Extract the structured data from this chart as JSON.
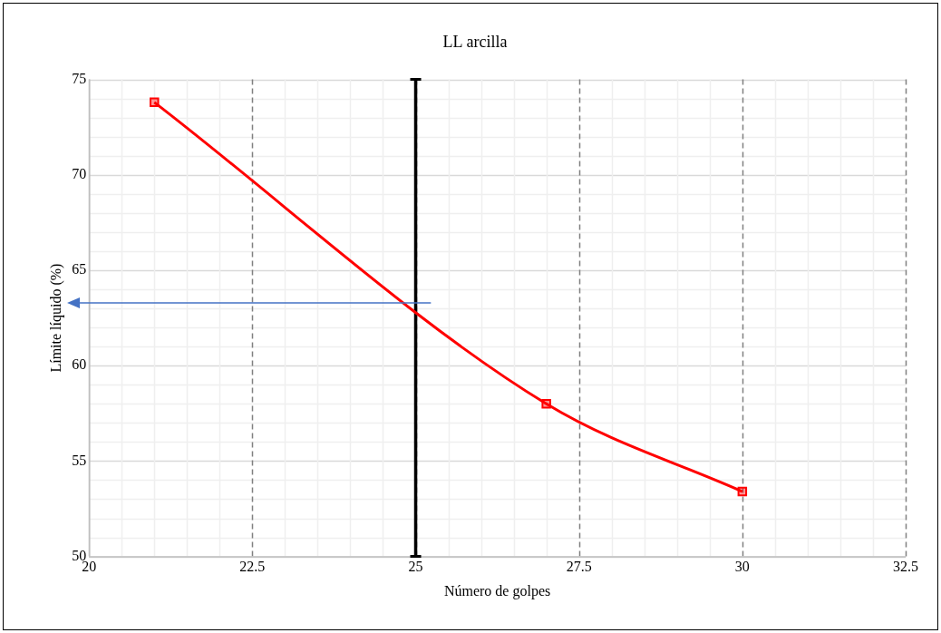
{
  "chart_data": {
    "type": "line",
    "title": "LL arcilla",
    "xlabel": "Número de golpes",
    "ylabel": "Límite líquido (%)",
    "x": [
      21,
      27,
      30
    ],
    "series": [
      {
        "color": "#ff0000",
        "values": [
          73.8,
          58,
          53.4
        ]
      }
    ],
    "xlim": [
      20,
      32.5
    ],
    "xticks": [
      20,
      {
        "value": 20.5,
        "label": null
      },
      {
        "value": 21,
        "label": null
      },
      {
        "value": 21.5,
        "label": null
      },
      {
        "value": 22,
        "label": null
      },
      22.5,
      {
        "value": 23,
        "label": null
      },
      {
        "value": 23.5,
        "label": null
      },
      {
        "value": 24,
        "label": null
      },
      {
        "value": 24.5,
        "label": null
      },
      25,
      {
        "value": 25.5,
        "label": null
      },
      {
        "value": 26,
        "label": null
      },
      {
        "value": 26.5,
        "label": null
      },
      {
        "value": 27,
        "label": null
      },
      27.5,
      {
        "value": 28,
        "label": null
      },
      {
        "value": 28.5,
        "label": null
      },
      {
        "value": 29,
        "label": null
      },
      {
        "value": 29.5,
        "label": null
      },
      30,
      {
        "value": 30.5,
        "label": null
      },
      {
        "value": 31,
        "label": null
      },
      {
        "value": 31.5,
        "label": null
      },
      {
        "value": 32,
        "label": null
      },
      32.5
    ],
    "ylim": [
      50,
      75
    ],
    "yticks": [
      50,
      {
        "value": 51,
        "label": null
      },
      {
        "value": 52,
        "label": null
      },
      {
        "value": 53,
        "label": null
      },
      {
        "value": 54,
        "label": null
      },
      55,
      {
        "value": 56,
        "label": null
      },
      {
        "value": 57,
        "label": null
      },
      {
        "value": 58,
        "label": null
      },
      {
        "value": 59,
        "label": null
      },
      60,
      {
        "value": 61,
        "label": null
      },
      {
        "value": 62,
        "label": null
      },
      {
        "value": 63,
        "label": null
      },
      {
        "value": 64,
        "label": null
      },
      65,
      {
        "value": 66,
        "label": null
      },
      {
        "value": 67,
        "label": null
      },
      {
        "value": 68,
        "label": null
      },
      {
        "value": 69,
        "label": null
      },
      70,
      {
        "value": 71,
        "label": null
      },
      {
        "value": 72,
        "label": null
      },
      {
        "value": 73,
        "label": null
      },
      {
        "value": 74,
        "label": null
      },
      75
    ],
    "ref_lines": [
      {
        "axis": "x",
        "value": 25,
        "color": "#000000"
      }
    ],
    "grid": true,
    "legend": false,
    "marker": "square",
    "line_style": "solid"
  }
}
